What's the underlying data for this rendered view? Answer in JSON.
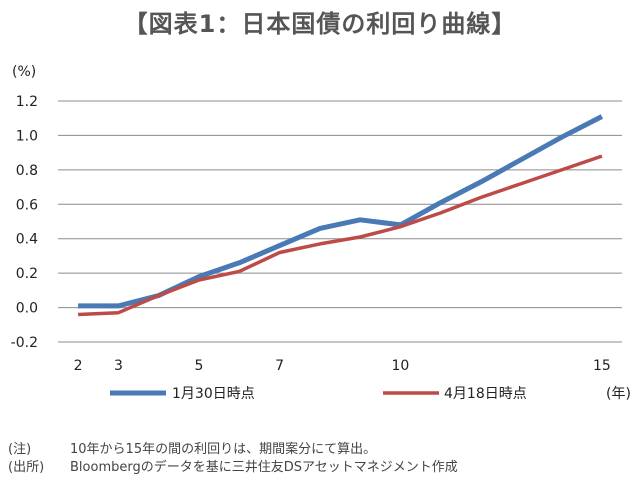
{
  "chart_data": {
    "type": "line",
    "title": "【図表1：日本国債の利回り曲線】",
    "ylabel": "(%)",
    "xlabel": "(年)",
    "ylim": [
      -0.2,
      1.2
    ],
    "yticks": [
      -0.2,
      0.0,
      0.2,
      0.4,
      0.6,
      0.8,
      1.0,
      1.2
    ],
    "ytick_labels": [
      "-0.2",
      "0.0",
      "0.2",
      "0.4",
      "0.6",
      "0.8",
      "1.0",
      "1.2"
    ],
    "xlim": [
      1.5,
      15.5
    ],
    "xticks": [
      2,
      3,
      5,
      7,
      10,
      15
    ],
    "xtick_labels": [
      "2",
      "3",
      "5",
      "7",
      "10",
      "15"
    ],
    "grid": "horizontal",
    "legend_position": "bottom",
    "series": [
      {
        "name": "1月30日時点",
        "color": "#4a7ab5",
        "x": [
          2,
          3,
          4,
          5,
          6,
          7,
          8,
          9,
          10,
          11,
          12,
          13,
          14,
          15
        ],
        "y": [
          0.01,
          0.01,
          0.07,
          0.18,
          0.26,
          0.36,
          0.46,
          0.51,
          0.48,
          0.61,
          0.73,
          0.86,
          0.99,
          1.11
        ]
      },
      {
        "name": "4月18日時点",
        "color": "#bd4b48",
        "x": [
          2,
          3,
          4,
          5,
          6,
          7,
          8,
          9,
          10,
          11,
          12,
          13,
          14,
          15
        ],
        "y": [
          -0.04,
          -0.03,
          0.07,
          0.16,
          0.21,
          0.32,
          0.37,
          0.41,
          0.47,
          0.55,
          0.64,
          0.72,
          0.8,
          0.88
        ]
      }
    ]
  },
  "notes": [
    {
      "key": "(注)",
      "text": "10年から15年の間の利回りは、期間案分にて算出。"
    },
    {
      "key": "(出所)",
      "text": "Bloombergのデータを基に三井住友DSアセットマネジメント作成"
    }
  ]
}
